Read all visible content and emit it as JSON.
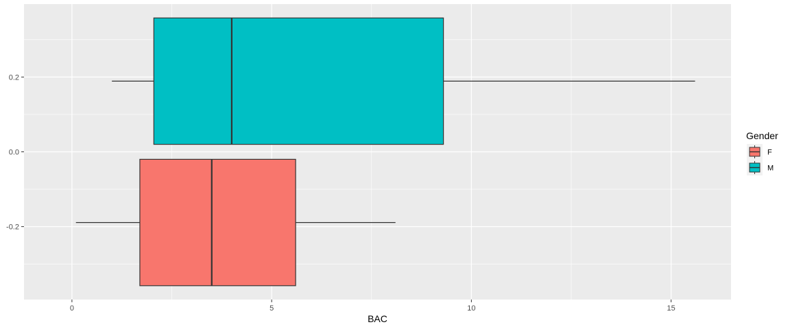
{
  "chart_data": {
    "type": "boxplot",
    "orientation": "horizontal",
    "xlabel": "BAC",
    "ylabel": "",
    "xlim": [
      -1.2,
      16.5
    ],
    "ylim": [
      -0.395,
      0.395
    ],
    "x_ticks": [
      0,
      5,
      10,
      15
    ],
    "x_minor_ticks": [
      2.5,
      7.5,
      12.5
    ],
    "y_ticks": [
      -0.2,
      0.0,
      0.2
    ],
    "y_tick_labels": [
      "-0.2",
      "0.0",
      "0.2"
    ],
    "y_minor_ticks": [
      -0.3,
      -0.1,
      0.1,
      0.3
    ],
    "grid": true,
    "legend": {
      "title": "Gender",
      "position": "right",
      "entries": [
        "F",
        "M"
      ]
    },
    "series": [
      {
        "name": "F",
        "color": "#F8766D",
        "y_range": [
          -0.358,
          -0.02
        ],
        "whisker_low": 0.1,
        "q1": 1.7,
        "median": 3.5,
        "q3": 5.6,
        "whisker_high": 8.1
      },
      {
        "name": "M",
        "color": "#00BFC4",
        "y_range": [
          0.02,
          0.358
        ],
        "whisker_low": 1.0,
        "q1": 2.05,
        "median": 4.0,
        "q3": 9.3,
        "whisker_high": 15.6
      }
    ]
  }
}
